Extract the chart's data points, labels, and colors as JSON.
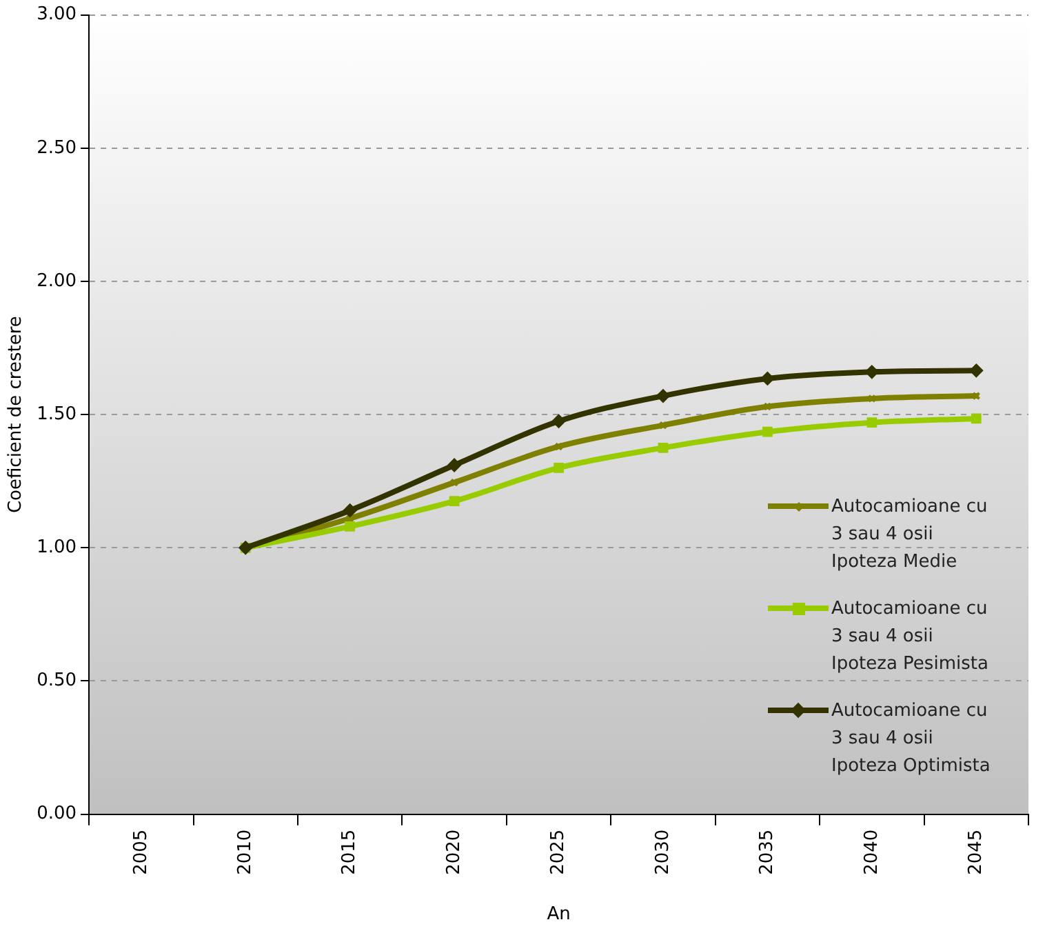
{
  "chart_data": {
    "type": "line",
    "xlabel": "An",
    "ylabel": "Coeficient de crestere",
    "categories": [
      "2005",
      "2010",
      "2015",
      "2020",
      "2025",
      "2030",
      "2035",
      "2040",
      "2045"
    ],
    "series": [
      {
        "name": "Autocamioane cu 3 sau 4 osii Ipoteza Medie",
        "color": "#808000",
        "marker": "cross",
        "values": [
          null,
          1.0,
          1.11,
          1.245,
          1.38,
          1.46,
          1.53,
          1.56,
          1.57
        ]
      },
      {
        "name": "Autocamioane cu 3 sau 4 osii Ipoteza Pesimista",
        "color": "#99cc00",
        "marker": "square",
        "values": [
          null,
          1.0,
          1.08,
          1.175,
          1.3,
          1.375,
          1.435,
          1.47,
          1.485
        ]
      },
      {
        "name": "Autocamioane cu 3 sau 4 osii Ipoteza Optimista",
        "color": "#333300",
        "marker": "diamond",
        "values": [
          null,
          1.0,
          1.14,
          1.31,
          1.475,
          1.57,
          1.635,
          1.66,
          1.665
        ]
      }
    ],
    "ylim": [
      0,
      3
    ],
    "yticks": [
      {
        "value": 0,
        "label": "0.00"
      },
      {
        "value": 0.5,
        "label": "0.50"
      },
      {
        "value": 1,
        "label": "1.00"
      },
      {
        "value": 1.5,
        "label": "1.50"
      },
      {
        "value": 2,
        "label": "2.00"
      },
      {
        "value": 2.5,
        "label": "2.50"
      },
      {
        "value": 3,
        "label": "3.00"
      }
    ],
    "grid": "y",
    "legend": "right",
    "line_style": "solid"
  }
}
